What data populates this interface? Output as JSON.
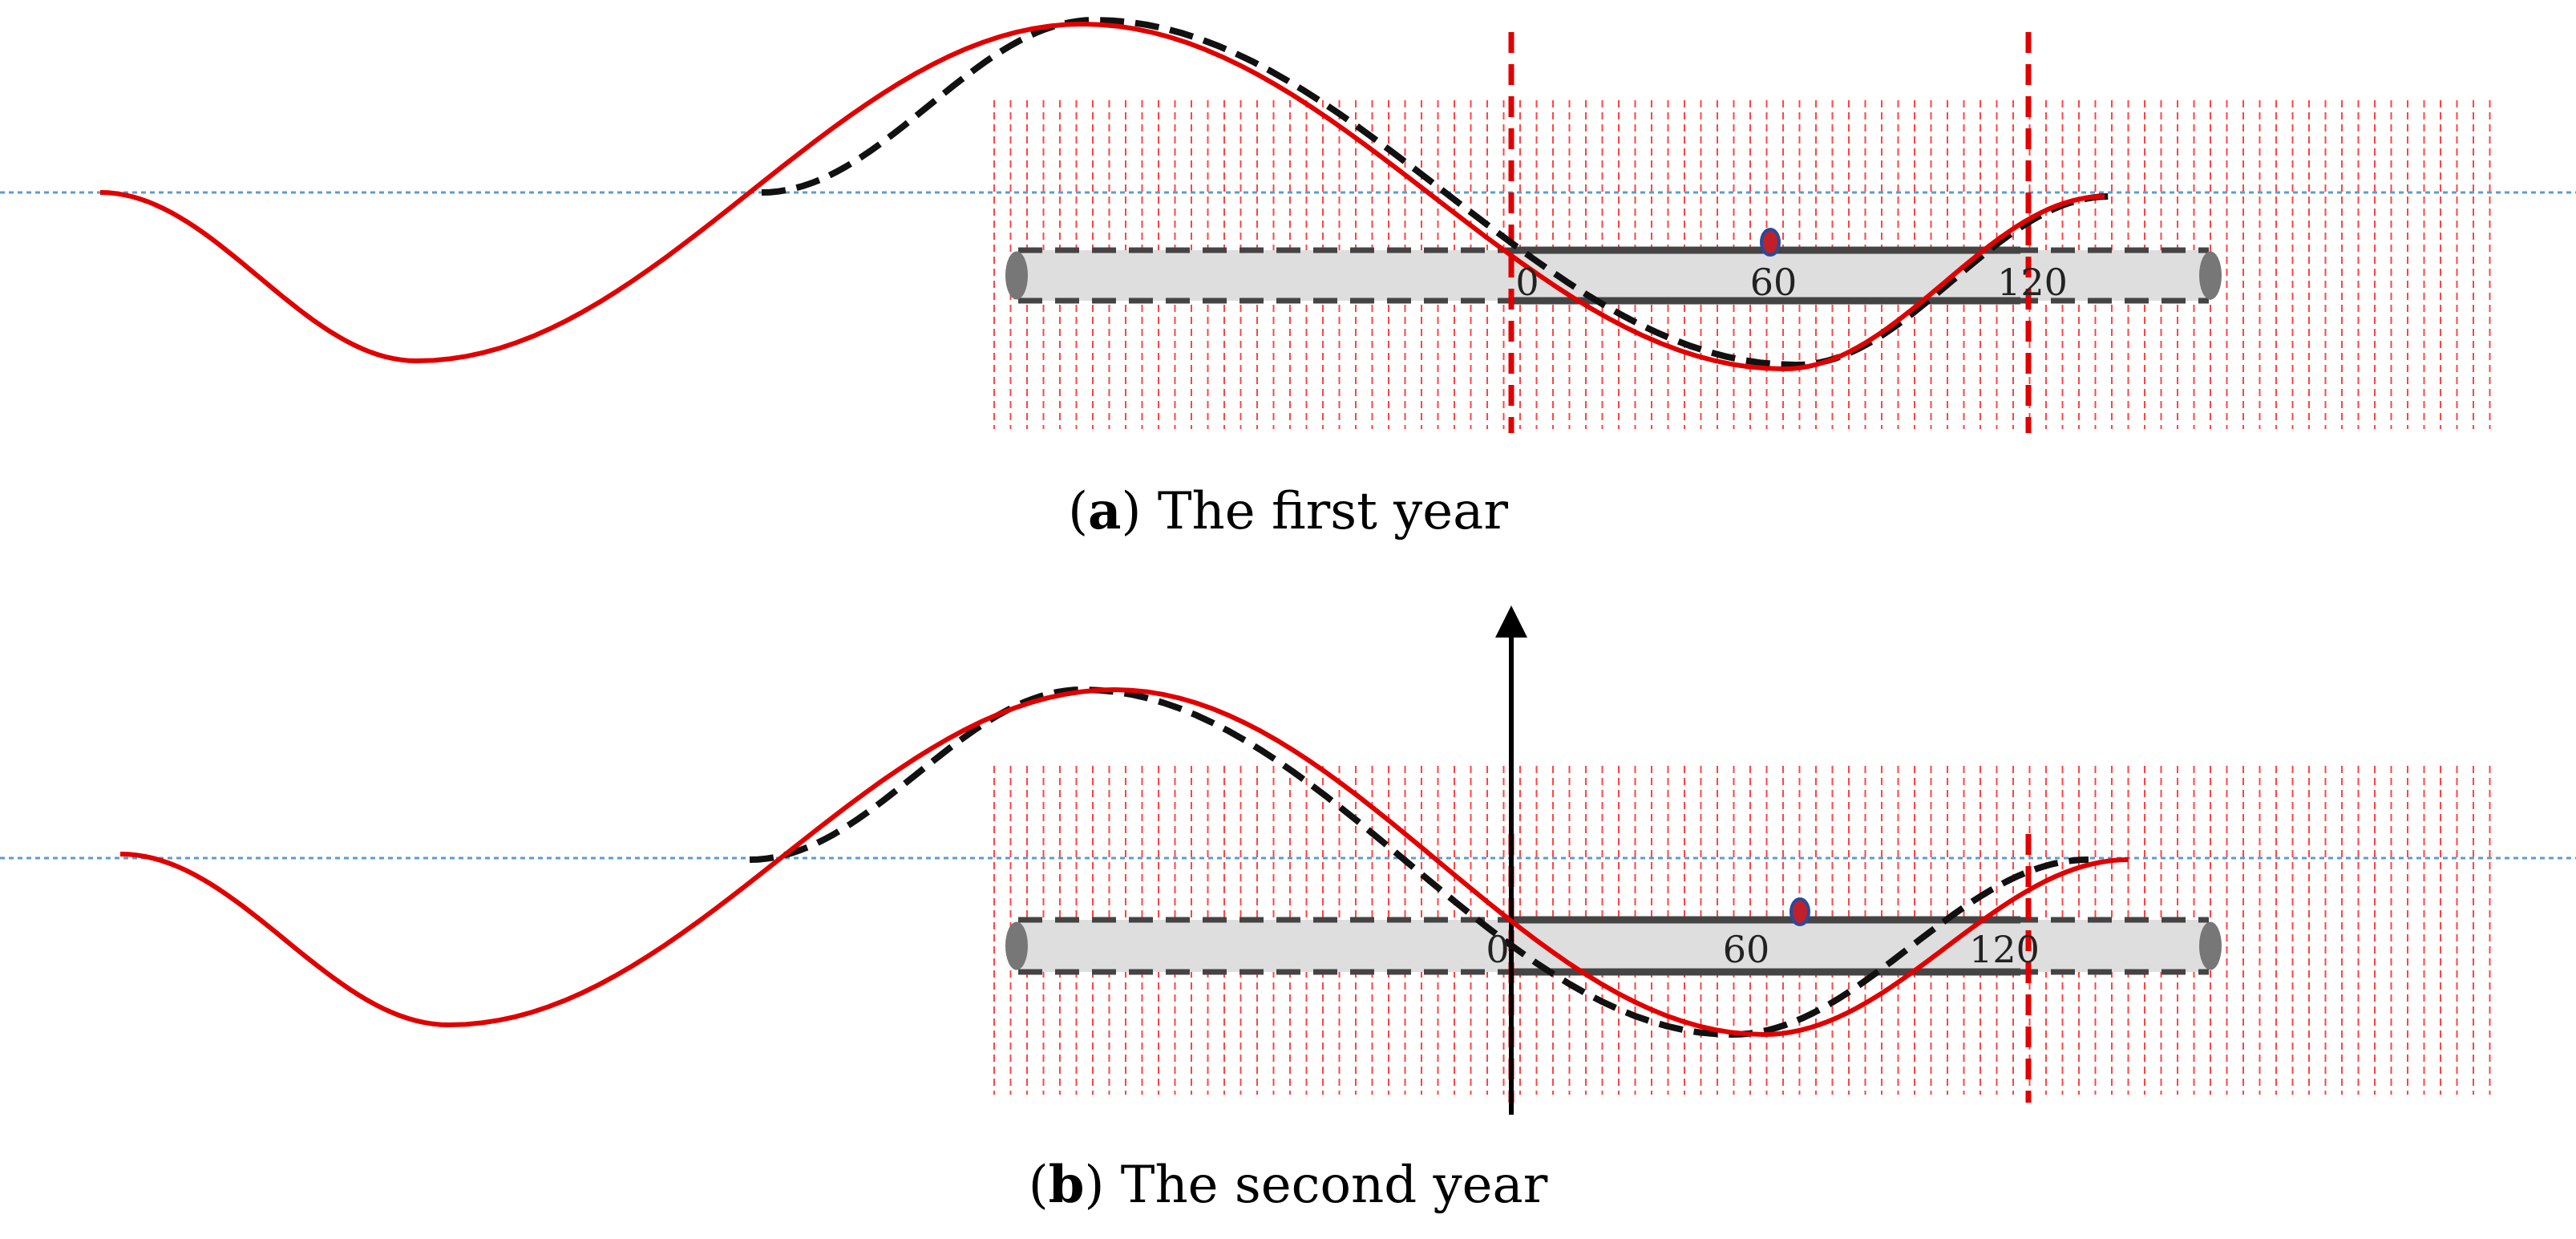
{
  "panels": [
    {
      "id": "a",
      "caption_letter": "a",
      "caption_text": " The first year",
      "scale_labels": [
        "0",
        "60",
        "120"
      ],
      "has_vertical_arrow": false
    },
    {
      "id": "b",
      "caption_letter": "b",
      "caption_text": " The second year",
      "scale_labels": [
        "0",
        "60",
        "120"
      ],
      "has_vertical_arrow": true
    }
  ],
  "colors": {
    "solid_curve": "#e00000",
    "dashed_curve": "#111111",
    "hatch_lines": "#ff4444",
    "marker_dash": "#e00000",
    "baseline": "#5b9bd5",
    "band_fill": "#dedede",
    "band_stroke": "#444444",
    "dot_fill": "#c0202a",
    "dot_stroke": "#2a4a9a"
  }
}
